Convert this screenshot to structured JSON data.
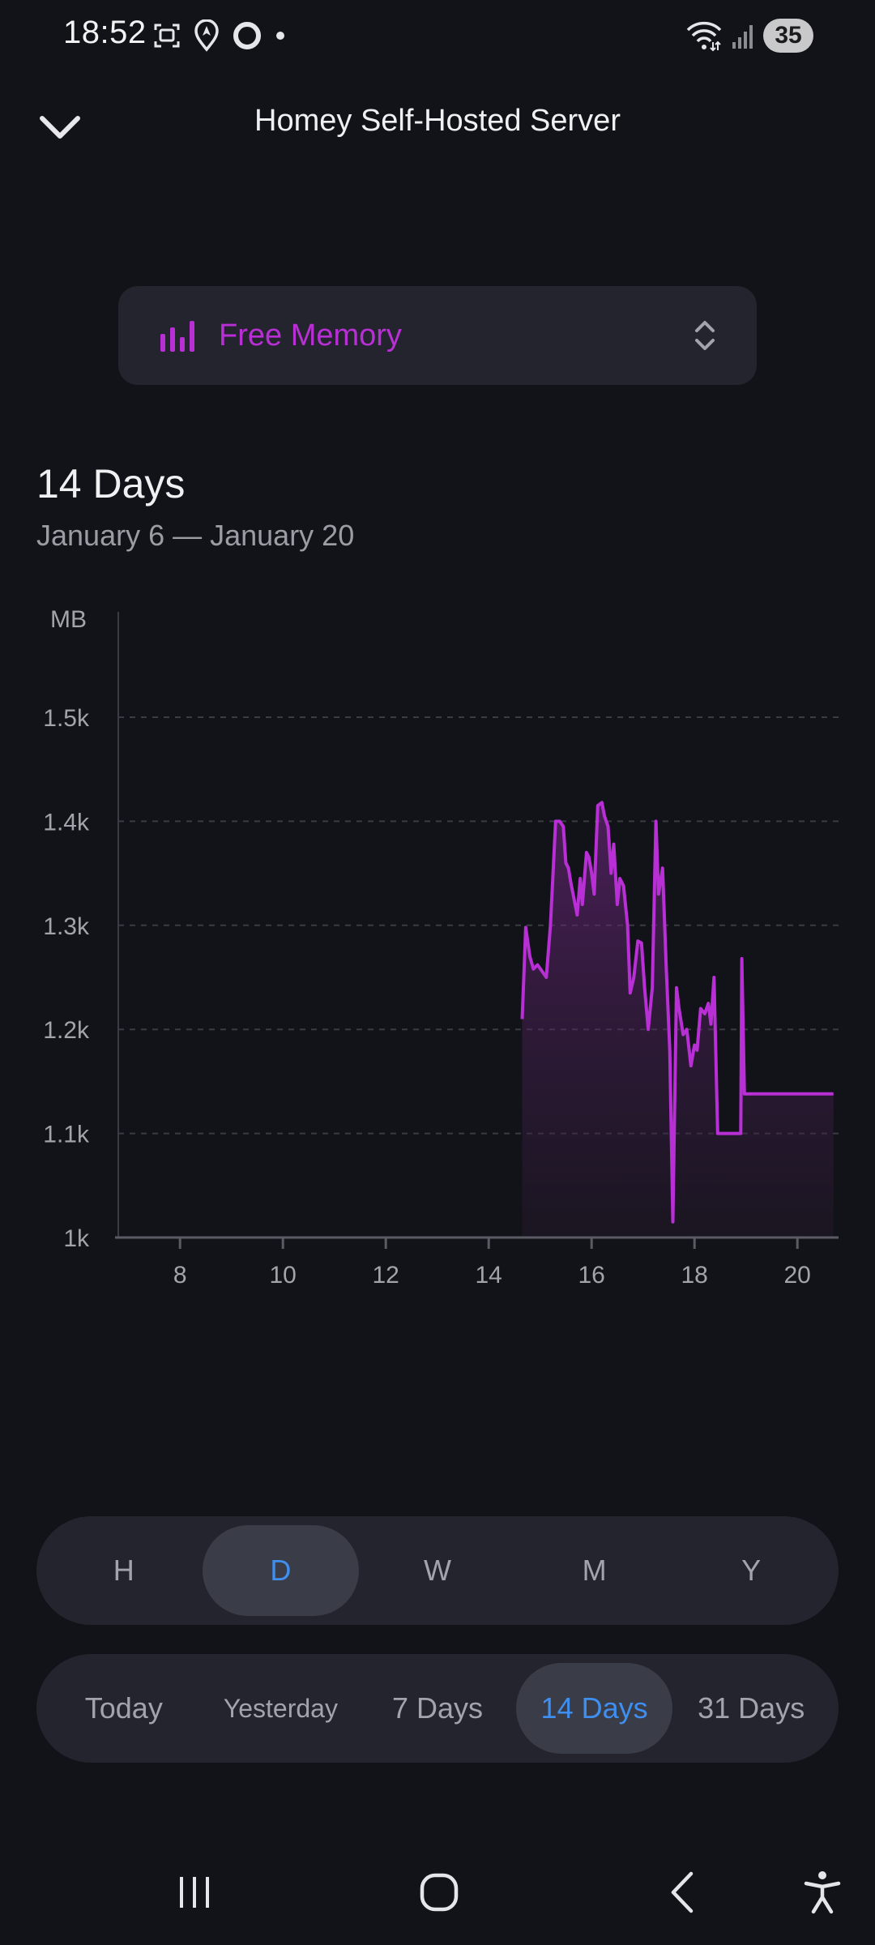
{
  "status_bar": {
    "time": "18:52",
    "battery": "35",
    "icons": [
      "screenshot-icon",
      "location-icon",
      "ring-icon",
      "dot-icon",
      "wifi-icon",
      "signal-icon"
    ]
  },
  "header": {
    "title": "Homey Self-Hosted Server",
    "back_icon": "chevron-down-icon"
  },
  "metric": {
    "label": "Free Memory",
    "icon": "bar-chart-icon",
    "selector_icon": "up-down-chevron-icon"
  },
  "range": {
    "title": "14 Days",
    "dates": "January 6 — January 20"
  },
  "colors": {
    "accent": "#b92fd6",
    "selected": "#3e8ff0",
    "background": "#121318",
    "surface": "#23242e"
  },
  "chart_data": {
    "type": "area",
    "unit_label": "MB",
    "ylim": [
      1000,
      1600
    ],
    "yticks": [
      1000,
      1100,
      1200,
      1300,
      1400,
      1500
    ],
    "ytick_labels": [
      "1k",
      "1.1k",
      "1.2k",
      "1.3k",
      "1.4k",
      "1.5k"
    ],
    "xlim": [
      6.8,
      20.8
    ],
    "xticks": [
      8,
      10,
      12,
      14,
      16,
      18,
      20
    ],
    "xtick_labels": [
      "8",
      "10",
      "12",
      "14",
      "16",
      "18",
      "20"
    ],
    "grid": true,
    "series": [
      {
        "points": [
          [
            14.65,
            1210
          ],
          [
            14.72,
            1298
          ],
          [
            14.8,
            1270
          ],
          [
            14.87,
            1258
          ],
          [
            14.95,
            1262
          ],
          [
            15.05,
            1255
          ],
          [
            15.12,
            1250
          ],
          [
            15.2,
            1300
          ],
          [
            15.3,
            1400
          ],
          [
            15.38,
            1400
          ],
          [
            15.45,
            1395
          ],
          [
            15.5,
            1360
          ],
          [
            15.55,
            1355
          ],
          [
            15.6,
            1340
          ],
          [
            15.68,
            1320
          ],
          [
            15.72,
            1310
          ],
          [
            15.78,
            1345
          ],
          [
            15.82,
            1320
          ],
          [
            15.9,
            1370
          ],
          [
            15.95,
            1365
          ],
          [
            16.0,
            1350
          ],
          [
            16.05,
            1330
          ],
          [
            16.12,
            1415
          ],
          [
            16.2,
            1418
          ],
          [
            16.25,
            1405
          ],
          [
            16.32,
            1395
          ],
          [
            16.38,
            1350
          ],
          [
            16.43,
            1378
          ],
          [
            16.5,
            1320
          ],
          [
            16.55,
            1345
          ],
          [
            16.62,
            1338
          ],
          [
            16.7,
            1300
          ],
          [
            16.75,
            1235
          ],
          [
            16.82,
            1250
          ],
          [
            16.9,
            1285
          ],
          [
            16.97,
            1283
          ],
          [
            17.03,
            1240
          ],
          [
            17.1,
            1200
          ],
          [
            17.18,
            1240
          ],
          [
            17.25,
            1400
          ],
          [
            17.3,
            1330
          ],
          [
            17.38,
            1355
          ],
          [
            17.45,
            1260
          ],
          [
            17.52,
            1180
          ],
          [
            17.58,
            1015
          ],
          [
            17.65,
            1240
          ],
          [
            17.7,
            1220
          ],
          [
            17.78,
            1195
          ],
          [
            17.85,
            1200
          ],
          [
            17.93,
            1165
          ],
          [
            18.0,
            1185
          ],
          [
            18.05,
            1180
          ],
          [
            18.12,
            1220
          ],
          [
            18.2,
            1215
          ],
          [
            18.27,
            1225
          ],
          [
            18.32,
            1205
          ],
          [
            18.38,
            1250
          ],
          [
            18.45,
            1100
          ],
          [
            18.6,
            1100
          ],
          [
            18.75,
            1100
          ],
          [
            18.9,
            1100
          ],
          [
            18.92,
            1268
          ],
          [
            18.97,
            1138
          ],
          [
            19.3,
            1138
          ],
          [
            19.7,
            1138
          ],
          [
            20.7,
            1138
          ]
        ]
      }
    ]
  },
  "granularity": {
    "options": [
      "H",
      "D",
      "W",
      "M",
      "Y"
    ],
    "selected": "D"
  },
  "range_options": {
    "options": [
      "Today",
      "Yesterday",
      "7 Days",
      "14 Days",
      "31 Days"
    ],
    "selected": "14 Days"
  }
}
